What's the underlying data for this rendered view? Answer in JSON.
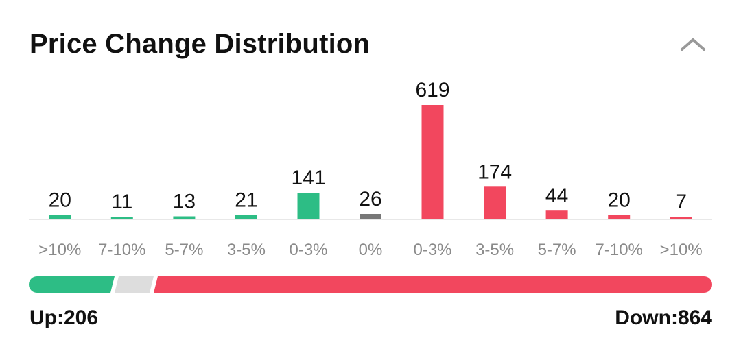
{
  "header": {
    "title": "Price Change Distribution",
    "collapse_icon": "chevron-up-icon"
  },
  "colors": {
    "up": "#2dbd85",
    "flat": "#777777",
    "down": "#f2475e",
    "neutral_segment": "#dddddd",
    "baseline": "#e8e8e8",
    "tick_label": "#8a8a8a",
    "value_label": "#111111"
  },
  "chart_data": {
    "type": "bar",
    "categories": [
      ">10%",
      "7-10%",
      "5-7%",
      "3-5%",
      "0-3%",
      "0%",
      "0-3%",
      "3-5%",
      "5-7%",
      "7-10%",
      ">10%"
    ],
    "values": [
      20,
      11,
      13,
      21,
      141,
      26,
      619,
      174,
      44,
      20,
      7
    ],
    "groups": [
      "up",
      "up",
      "up",
      "up",
      "up",
      "flat",
      "down",
      "down",
      "down",
      "down",
      "down"
    ],
    "ylim": [
      0,
      619
    ],
    "grid": false,
    "legend": "none"
  },
  "summary": {
    "up_label": "Up:206",
    "down_label": "Down:864",
    "up_count": 206,
    "flat_count": 26,
    "down_count": 864
  }
}
